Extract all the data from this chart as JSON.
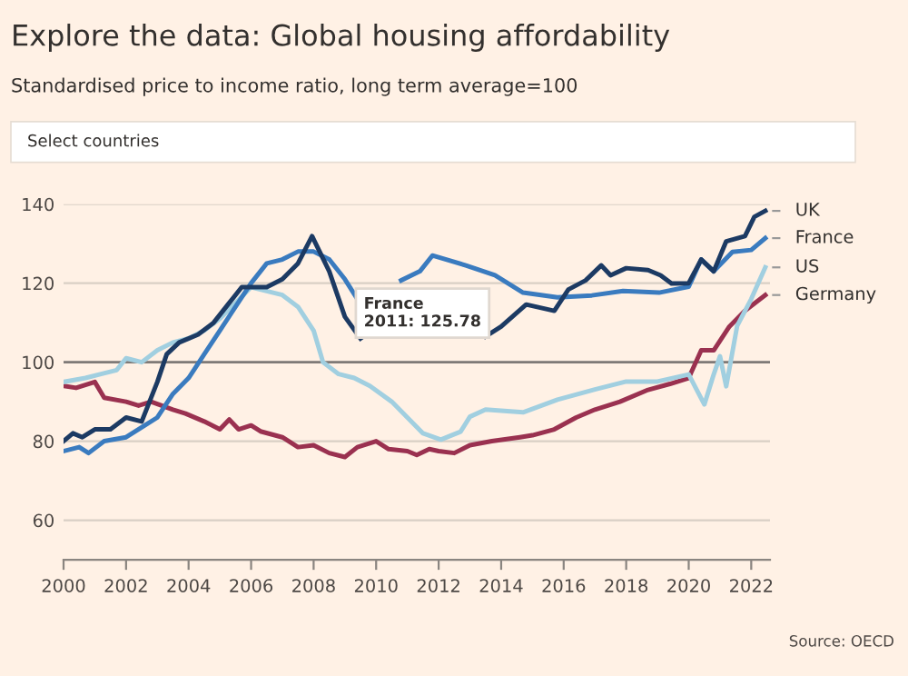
{
  "chart_data": {
    "type": "line",
    "title": "Explore the data: Global housing affordability",
    "subtitle": "Standardised price to income ratio, long term average=100",
    "annotations": [
      "Select countries",
      "France\n2011: 125.78",
      "Source: OECD"
    ],
    "xlim": [
      2000,
      2022.6
    ],
    "xticks": [
      2000,
      2002,
      2004,
      2006,
      2008,
      2010,
      2012,
      2014,
      2016,
      2018,
      2020,
      2022
    ],
    "ylim": [
      50,
      140
    ],
    "yticks": [
      60,
      80,
      100,
      120,
      140
    ],
    "grid": "y",
    "legend": false,
    "marker": "none",
    "line_style": "solid",
    "ref_lines": [
      {
        "axis": "y",
        "value": 100,
        "color": "#7f7a77"
      }
    ],
    "series": [
      {
        "name": "UK",
        "color": "#1c3a63",
        "x": [
          2000,
          2000.3,
          2000.6,
          2001,
          2001.5,
          2002,
          2002.5,
          2003,
          2003.3,
          2003.7,
          2004.3,
          2004.8,
          2005.3,
          2005.7,
          2006.5,
          2007,
          2007.5,
          2007.95,
          2008.5,
          2009,
          2009.5,
          2010,
          2013.3,
          2013.5,
          2014.0,
          2014.8,
          2015.7,
          2016.15,
          2016.7,
          2017.2,
          2017.5,
          2018.0,
          2018.7,
          2019.1,
          2019.45,
          2020.0,
          2020.4,
          2020.8,
          2021.2,
          2021.8,
          2022.1,
          2022.45
        ],
        "values": [
          80,
          82,
          81,
          83,
          83,
          86,
          85,
          95,
          102,
          105,
          107,
          110,
          115,
          119,
          119,
          121,
          125,
          131.9,
          123,
          111.5,
          106,
          null,
          null,
          106.5,
          109,
          114.6,
          113,
          118.4,
          120.7,
          124.5,
          122,
          123.8,
          123.3,
          122,
          119.9,
          120,
          126,
          123,
          130.6,
          131.9,
          136.8,
          138.3
        ]
      },
      {
        "name": "France",
        "color": "#3a7bbf",
        "x": [
          2000,
          2000.5,
          2000.8,
          2001.3,
          2002,
          2002.6,
          2003,
          2003.5,
          2004,
          2004.5,
          2005,
          2005.5,
          2006,
          2006.5,
          2007,
          2007.5,
          2008,
          2008.5,
          2009,
          2009.4,
          2010,
          2010.8,
          2011.4,
          2011.8,
          2012.87,
          2013.8,
          2014.7,
          2015.8,
          2016.9,
          2017.9,
          2019.05,
          2020.0,
          2020.4,
          2020.8,
          2021.4,
          2022.0,
          2022.45
        ],
        "values": [
          77.5,
          78.5,
          77,
          80,
          81,
          84,
          86,
          92,
          96,
          102,
          108,
          114,
          120,
          125,
          126,
          128,
          128,
          126,
          121,
          116,
          null,
          120.7,
          123,
          127,
          124.5,
          122,
          117.6,
          116.4,
          116.9,
          118,
          117.6,
          119.1,
          126,
          123,
          127.9,
          128.4,
          131.4
        ]
      },
      {
        "name": "US",
        "color": "#a1cfe0",
        "x": [
          2000,
          2000.7,
          2001.2,
          2001.7,
          2002,
          2002.5,
          2003,
          2003.5,
          2004,
          2004.5,
          2005,
          2005.5,
          2006,
          2006.5,
          2007,
          2007.5,
          2008,
          2008.3,
          2008.8,
          2009.3,
          2009.8,
          2010.5,
          2011,
          2011.5,
          2012.07,
          2012.7,
          2013,
          2013.5,
          2014.7,
          2015.8,
          2017,
          2018,
          2019,
          2020,
          2020.5,
          2020.8,
          2021,
          2021.2,
          2021.55,
          2022.0,
          2022.45
        ],
        "values": [
          95,
          96,
          97,
          98,
          101,
          100,
          103,
          105,
          106,
          108,
          111,
          115,
          119,
          118,
          117,
          114,
          108,
          100,
          97,
          96,
          94,
          90,
          86,
          82,
          80.4,
          82.4,
          86.2,
          88,
          87.3,
          90.5,
          93.1,
          95.1,
          95.1,
          96.9,
          89.3,
          96.9,
          101.5,
          93.9,
          109.2,
          116,
          124
        ]
      },
      {
        "name": "Germany",
        "color": "#9a3150",
        "x": [
          2000,
          2000.4,
          2001,
          2001.3,
          2002,
          2002.4,
          2002.8,
          2003.5,
          2003.9,
          2004.5,
          2005,
          2005.3,
          2005.6,
          2006,
          2006.3,
          2007,
          2007.5,
          2008,
          2008.5,
          2009,
          2009.4,
          2010,
          2010.4,
          2011,
          2011.3,
          2011.7,
          2012,
          2012.5,
          2013,
          2013.7,
          2014.6,
          2015,
          2015.7,
          2016.4,
          2017,
          2017.8,
          2018.7,
          2019.4,
          2020,
          2020.4,
          2020.8,
          2021.3,
          2021.8,
          2022.45
        ],
        "values": [
          94,
          93.5,
          95,
          91,
          90,
          89,
          90,
          88,
          87,
          85,
          83,
          85.5,
          83,
          84,
          82.5,
          81,
          78.5,
          79,
          77,
          76,
          78.5,
          80,
          78,
          77.5,
          76.5,
          78,
          77.5,
          77,
          79,
          80,
          81,
          81.5,
          83,
          86,
          88,
          90,
          93,
          94.5,
          96,
          103,
          103,
          109,
          113,
          117
        ]
      }
    ]
  }
}
